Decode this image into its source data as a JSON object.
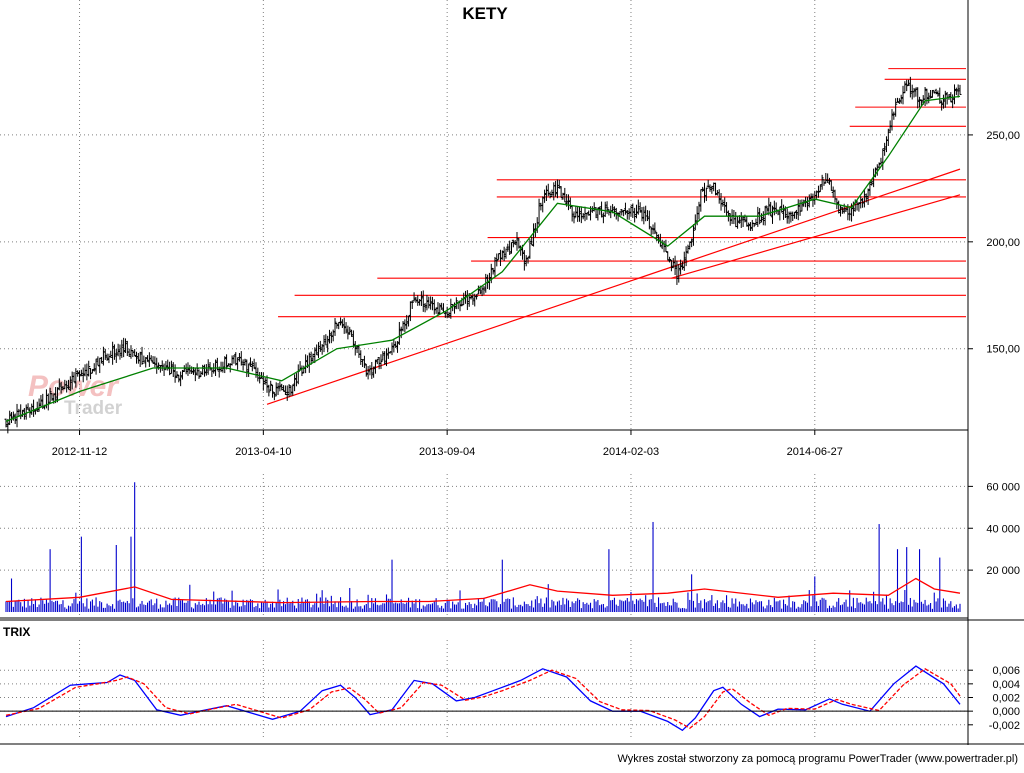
{
  "title": "KETY",
  "footer": "Wykres został stworzony za pomocą programu PowerTrader (www.powertrader.pl)",
  "watermark": {
    "line1": "Power",
    "line2": "Trader"
  },
  "colors": {
    "candle": "#000000",
    "sma": "#008000",
    "levels": "#ff0000",
    "trendline": "#ff0000",
    "volume_bar": "#0000cc",
    "volume_avg": "#ff0000",
    "trix": "#0000ff",
    "trix_signal": "#ff0000",
    "grid": "#808080"
  },
  "chart_data": [
    {
      "type": "candlestick",
      "name": "price",
      "title": "KETY",
      "x_tick_labels": [
        "2012-11-12",
        "2013-04-10",
        "2013-09-04",
        "2014-02-03",
        "2014-06-27"
      ],
      "y_tick_labels": [
        "150,00",
        "200,00",
        "250,00"
      ],
      "y_ticks": [
        150,
        200,
        250
      ],
      "ylim": [
        112,
        300
      ],
      "n_bars": 520,
      "x_tick_bar_index": [
        40,
        140,
        240,
        340,
        440
      ],
      "grid": true,
      "close_path": [
        [
          0,
          117
        ],
        [
          15,
          121
        ],
        [
          30,
          132
        ],
        [
          45,
          140
        ],
        [
          55,
          148
        ],
        [
          65,
          150
        ],
        [
          80,
          142
        ],
        [
          95,
          138
        ],
        [
          110,
          140
        ],
        [
          125,
          145
        ],
        [
          135,
          140
        ],
        [
          145,
          130
        ],
        [
          155,
          132
        ],
        [
          165,
          145
        ],
        [
          175,
          155
        ],
        [
          182,
          165
        ],
        [
          190,
          150
        ],
        [
          197,
          138
        ],
        [
          203,
          144
        ],
        [
          210,
          150
        ],
        [
          216,
          160
        ],
        [
          222,
          175
        ],
        [
          232,
          170
        ],
        [
          240,
          168
        ],
        [
          250,
          172
        ],
        [
          260,
          180
        ],
        [
          270,
          195
        ],
        [
          278,
          200
        ],
        [
          283,
          190
        ],
        [
          292,
          222
        ],
        [
          300,
          225
        ],
        [
          310,
          212
        ],
        [
          325,
          214
        ],
        [
          345,
          214
        ],
        [
          355,
          200
        ],
        [
          365,
          185
        ],
        [
          372,
          198
        ],
        [
          378,
          222
        ],
        [
          385,
          225
        ],
        [
          395,
          210
        ],
        [
          405,
          208
        ],
        [
          415,
          215
        ],
        [
          428,
          212
        ],
        [
          438,
          220
        ],
        [
          446,
          230
        ],
        [
          454,
          215
        ],
        [
          460,
          215
        ],
        [
          468,
          222
        ],
        [
          476,
          238
        ],
        [
          483,
          260
        ],
        [
          490,
          275
        ],
        [
          496,
          268
        ],
        [
          502,
          270
        ],
        [
          510,
          266
        ],
        [
          519,
          270
        ]
      ],
      "sma_path": [
        [
          0,
          116
        ],
        [
          40,
          130
        ],
        [
          80,
          141
        ],
        [
          120,
          141
        ],
        [
          150,
          135
        ],
        [
          180,
          150
        ],
        [
          210,
          154
        ],
        [
          240,
          168
        ],
        [
          270,
          186
        ],
        [
          300,
          218
        ],
        [
          330,
          214
        ],
        [
          360,
          198
        ],
        [
          380,
          212
        ],
        [
          410,
          212
        ],
        [
          440,
          220
        ],
        [
          460,
          216
        ],
        [
          480,
          240
        ],
        [
          500,
          266
        ],
        [
          519,
          268
        ]
      ],
      "resistance_levels": [
        {
          "level": 281,
          "from_bar": 480
        },
        {
          "level": 276,
          "from_bar": 478
        },
        {
          "level": 263,
          "from_bar": 462
        },
        {
          "level": 254,
          "from_bar": 459
        },
        {
          "level": 229,
          "from_bar": 267
        },
        {
          "level": 221,
          "from_bar": 267
        },
        {
          "level": 202,
          "from_bar": 262
        },
        {
          "level": 191,
          "from_bar": 253
        },
        {
          "level": 183,
          "from_bar": 202
        },
        {
          "level": 175,
          "from_bar": 157
        },
        {
          "level": 165,
          "from_bar": 148
        }
      ],
      "trendlines": [
        {
          "from": [
            142,
            124
          ],
          "to": [
            519,
            234
          ]
        },
        {
          "from": [
            362,
            183
          ],
          "to": [
            519,
            222
          ]
        }
      ]
    },
    {
      "type": "bar",
      "name": "volume",
      "y_tick_labels": [
        "20 000",
        "40 000",
        "60 000"
      ],
      "y_ticks": [
        20000,
        40000,
        60000
      ],
      "ylim": [
        0,
        64000
      ],
      "spikes": [
        {
          "bar": 3,
          "value": 16000
        },
        {
          "bar": 24,
          "value": 30000
        },
        {
          "bar": 41,
          "value": 36000
        },
        {
          "bar": 60,
          "value": 32000
        },
        {
          "bar": 68,
          "value": 36000
        },
        {
          "bar": 70,
          "value": 62000
        },
        {
          "bar": 100,
          "value": 13000
        },
        {
          "bar": 210,
          "value": 25000
        },
        {
          "bar": 270,
          "value": 25000
        },
        {
          "bar": 328,
          "value": 30000
        },
        {
          "bar": 352,
          "value": 43000
        },
        {
          "bar": 373,
          "value": 18000
        },
        {
          "bar": 440,
          "value": 17000
        },
        {
          "bar": 475,
          "value": 42000
        },
        {
          "bar": 485,
          "value": 30000
        },
        {
          "bar": 490,
          "value": 31000
        },
        {
          "bar": 497,
          "value": 30000
        },
        {
          "bar": 508,
          "value": 26000
        }
      ],
      "avg_path": [
        [
          0,
          5000
        ],
        [
          40,
          7000
        ],
        [
          70,
          12000
        ],
        [
          90,
          6000
        ],
        [
          150,
          4500
        ],
        [
          200,
          5000
        ],
        [
          230,
          5000
        ],
        [
          260,
          6500
        ],
        [
          285,
          13000
        ],
        [
          300,
          10000
        ],
        [
          330,
          8000
        ],
        [
          360,
          9000
        ],
        [
          380,
          11000
        ],
        [
          420,
          7000
        ],
        [
          450,
          9000
        ],
        [
          480,
          8000
        ],
        [
          495,
          16000
        ],
        [
          505,
          11000
        ],
        [
          519,
          9000
        ]
      ]
    },
    {
      "type": "line",
      "name": "trix",
      "title": "TRIX",
      "y_tick_labels": [
        "-0,002",
        "0,000",
        "0,002",
        "0,004",
        "0,006"
      ],
      "y_ticks": [
        -0.002,
        0,
        0.002,
        0.004,
        0.006
      ],
      "ylim": [
        -0.0032,
        0.0072
      ],
      "series": [
        {
          "role": "trix",
          "points": [
            [
              0,
              -0.0008
            ],
            [
              15,
              0.0005
            ],
            [
              35,
              0.0038
            ],
            [
              45,
              0.004
            ],
            [
              55,
              0.0042
            ],
            [
              62,
              0.0053
            ],
            [
              70,
              0.0045
            ],
            [
              82,
              0.0002
            ],
            [
              95,
              -0.0006
            ],
            [
              105,
              0.0
            ],
            [
              120,
              0.0008
            ],
            [
              135,
              -0.0004
            ],
            [
              145,
              -0.0012
            ],
            [
              160,
              0.0
            ],
            [
              172,
              0.003
            ],
            [
              182,
              0.0038
            ],
            [
              190,
              0.002
            ],
            [
              198,
              -0.0005
            ],
            [
              210,
              0.0002
            ],
            [
              222,
              0.0045
            ],
            [
              232,
              0.004
            ],
            [
              245,
              0.0015
            ],
            [
              255,
              0.002
            ],
            [
              265,
              0.003
            ],
            [
              280,
              0.0045
            ],
            [
              292,
              0.0062
            ],
            [
              305,
              0.005
            ],
            [
              318,
              0.0015
            ],
            [
              330,
              0.0
            ],
            [
              345,
              0.0
            ],
            [
              360,
              -0.0015
            ],
            [
              368,
              -0.0028
            ],
            [
              375,
              -0.001
            ],
            [
              385,
              0.003
            ],
            [
              390,
              0.0035
            ],
            [
              400,
              0.001
            ],
            [
              410,
              -0.0008
            ],
            [
              420,
              0.0003
            ],
            [
              435,
              0.0002
            ],
            [
              448,
              0.0018
            ],
            [
              455,
              0.001
            ],
            [
              470,
              0.0
            ],
            [
              483,
              0.004
            ],
            [
              495,
              0.0066
            ],
            [
              510,
              0.004
            ],
            [
              519,
              0.001
            ]
          ]
        },
        {
          "role": "signal",
          "dashed": true,
          "points": [
            [
              0,
              -0.0006
            ],
            [
              18,
              0.0004
            ],
            [
              38,
              0.0035
            ],
            [
              50,
              0.004
            ],
            [
              60,
              0.0045
            ],
            [
              66,
              0.005
            ],
            [
              75,
              0.004
            ],
            [
              87,
              0.0005
            ],
            [
              100,
              -0.0004
            ],
            [
              110,
              0.0002
            ],
            [
              125,
              0.001
            ],
            [
              140,
              -0.0002
            ],
            [
              150,
              -0.001
            ],
            [
              165,
              0.0002
            ],
            [
              177,
              0.0028
            ],
            [
              187,
              0.0034
            ],
            [
              195,
              0.0018
            ],
            [
              203,
              -0.0003
            ],
            [
              215,
              0.0005
            ],
            [
              227,
              0.0042
            ],
            [
              237,
              0.0038
            ],
            [
              250,
              0.0016
            ],
            [
              260,
              0.0021
            ],
            [
              270,
              0.003
            ],
            [
              285,
              0.0045
            ],
            [
              297,
              0.006
            ],
            [
              310,
              0.0048
            ],
            [
              323,
              0.0014
            ],
            [
              335,
              0.0002
            ],
            [
              350,
              0.0001
            ],
            [
              364,
              -0.0013
            ],
            [
              372,
              -0.0025
            ],
            [
              380,
              -0.0008
            ],
            [
              390,
              0.0028
            ],
            [
              395,
              0.0033
            ],
            [
              405,
              0.0012
            ],
            [
              415,
              -0.0006
            ],
            [
              425,
              0.0004
            ],
            [
              440,
              0.0003
            ],
            [
              452,
              0.0017
            ],
            [
              460,
              0.001
            ],
            [
              475,
              0.0001
            ],
            [
              488,
              0.0038
            ],
            [
              500,
              0.0062
            ],
            [
              514,
              0.004
            ],
            [
              519,
              0.0022
            ]
          ]
        }
      ]
    }
  ]
}
